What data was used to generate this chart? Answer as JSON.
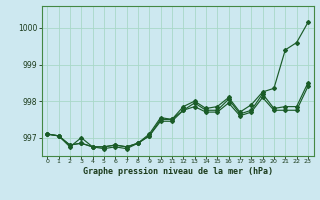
{
  "title": "Graphe pression niveau de la mer (hPa)",
  "background_color": "#cde8f0",
  "grid_color": "#a8d8c8",
  "line_color": "#1a5c28",
  "xlim": [
    -0.5,
    23.5
  ],
  "ylim": [
    996.5,
    1000.6
  ],
  "yticks": [
    997,
    998,
    999,
    1000
  ],
  "xticks": [
    0,
    1,
    2,
    3,
    4,
    5,
    6,
    7,
    8,
    9,
    10,
    11,
    12,
    13,
    14,
    15,
    16,
    17,
    18,
    19,
    20,
    21,
    22,
    23
  ],
  "series": {
    "line_high": [
      997.1,
      997.05,
      996.8,
      996.85,
      996.75,
      996.75,
      996.8,
      996.75,
      996.85,
      997.1,
      997.55,
      997.5,
      997.85,
      998.0,
      997.8,
      997.85,
      998.1,
      997.7,
      997.9,
      998.25,
      998.35,
      999.4,
      999.6,
      1000.15
    ],
    "line_mid1": [
      997.1,
      997.05,
      996.8,
      996.85,
      996.75,
      996.75,
      996.8,
      996.75,
      996.85,
      997.05,
      997.5,
      997.5,
      997.75,
      997.95,
      997.75,
      997.75,
      998.05,
      997.65,
      997.75,
      998.2,
      997.8,
      997.85,
      997.85,
      998.5
    ],
    "line_mid2": [
      997.1,
      997.05,
      996.75,
      997.0,
      996.75,
      996.7,
      996.75,
      996.7,
      996.85,
      997.05,
      997.45,
      997.45,
      997.75,
      997.85,
      997.7,
      997.7,
      997.95,
      997.6,
      997.7,
      998.1,
      997.75,
      997.75,
      997.75,
      998.4
    ]
  }
}
